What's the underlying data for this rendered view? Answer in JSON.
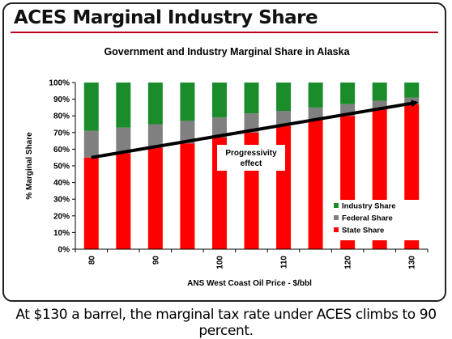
{
  "slide_title": "ACES Marginal Industry Share",
  "caption": "At $130 a barrel, the marginal tax rate under ACES climbs to 90 percent.",
  "colors": {
    "state": "#ff0000",
    "federal": "#808080",
    "industry": "#1a8c2a",
    "title_rule": "#b8001f"
  },
  "chart_data": {
    "type": "bar",
    "stacked": true,
    "title": "Government and Industry Marginal Share in Alaska",
    "xlabel": "ANS West Coast Oil Price - $/bbl",
    "ylabel": "% Marginal Share",
    "x": [
      80,
      85,
      90,
      95,
      100,
      105,
      110,
      115,
      120,
      125,
      130
    ],
    "x_tick_labels": [
      "80",
      "",
      "90",
      "",
      "100",
      "",
      "110",
      "",
      "120",
      "",
      "130"
    ],
    "y_tick_labels": [
      "0%",
      "10%",
      "20%",
      "30%",
      "40%",
      "50%",
      "60%",
      "70%",
      "80%",
      "90%",
      "100%"
    ],
    "ylim": [
      0,
      100
    ],
    "series": [
      {
        "name": "State Share",
        "values": [
          55,
          57.5,
          61,
          63.5,
          67,
          70,
          74,
          78,
          80,
          84,
          87
        ]
      },
      {
        "name": "Federal Share",
        "values": [
          16,
          15.5,
          14,
          13.5,
          12,
          11.5,
          9,
          7,
          7,
          5,
          4
        ]
      },
      {
        "name": "Industry Share",
        "values": [
          29,
          27,
          25,
          23,
          21,
          18.5,
          17,
          15,
          13,
          11,
          9
        ]
      }
    ],
    "legend_order": [
      "Industry Share",
      "Federal Share",
      "State Share"
    ],
    "legend_position": "bottom-right",
    "annotation": {
      "text_lines": [
        "Progressivity",
        "effect"
      ],
      "arrow_from": [
        80,
        55
      ],
      "arrow_to": [
        130,
        88
      ]
    }
  }
}
